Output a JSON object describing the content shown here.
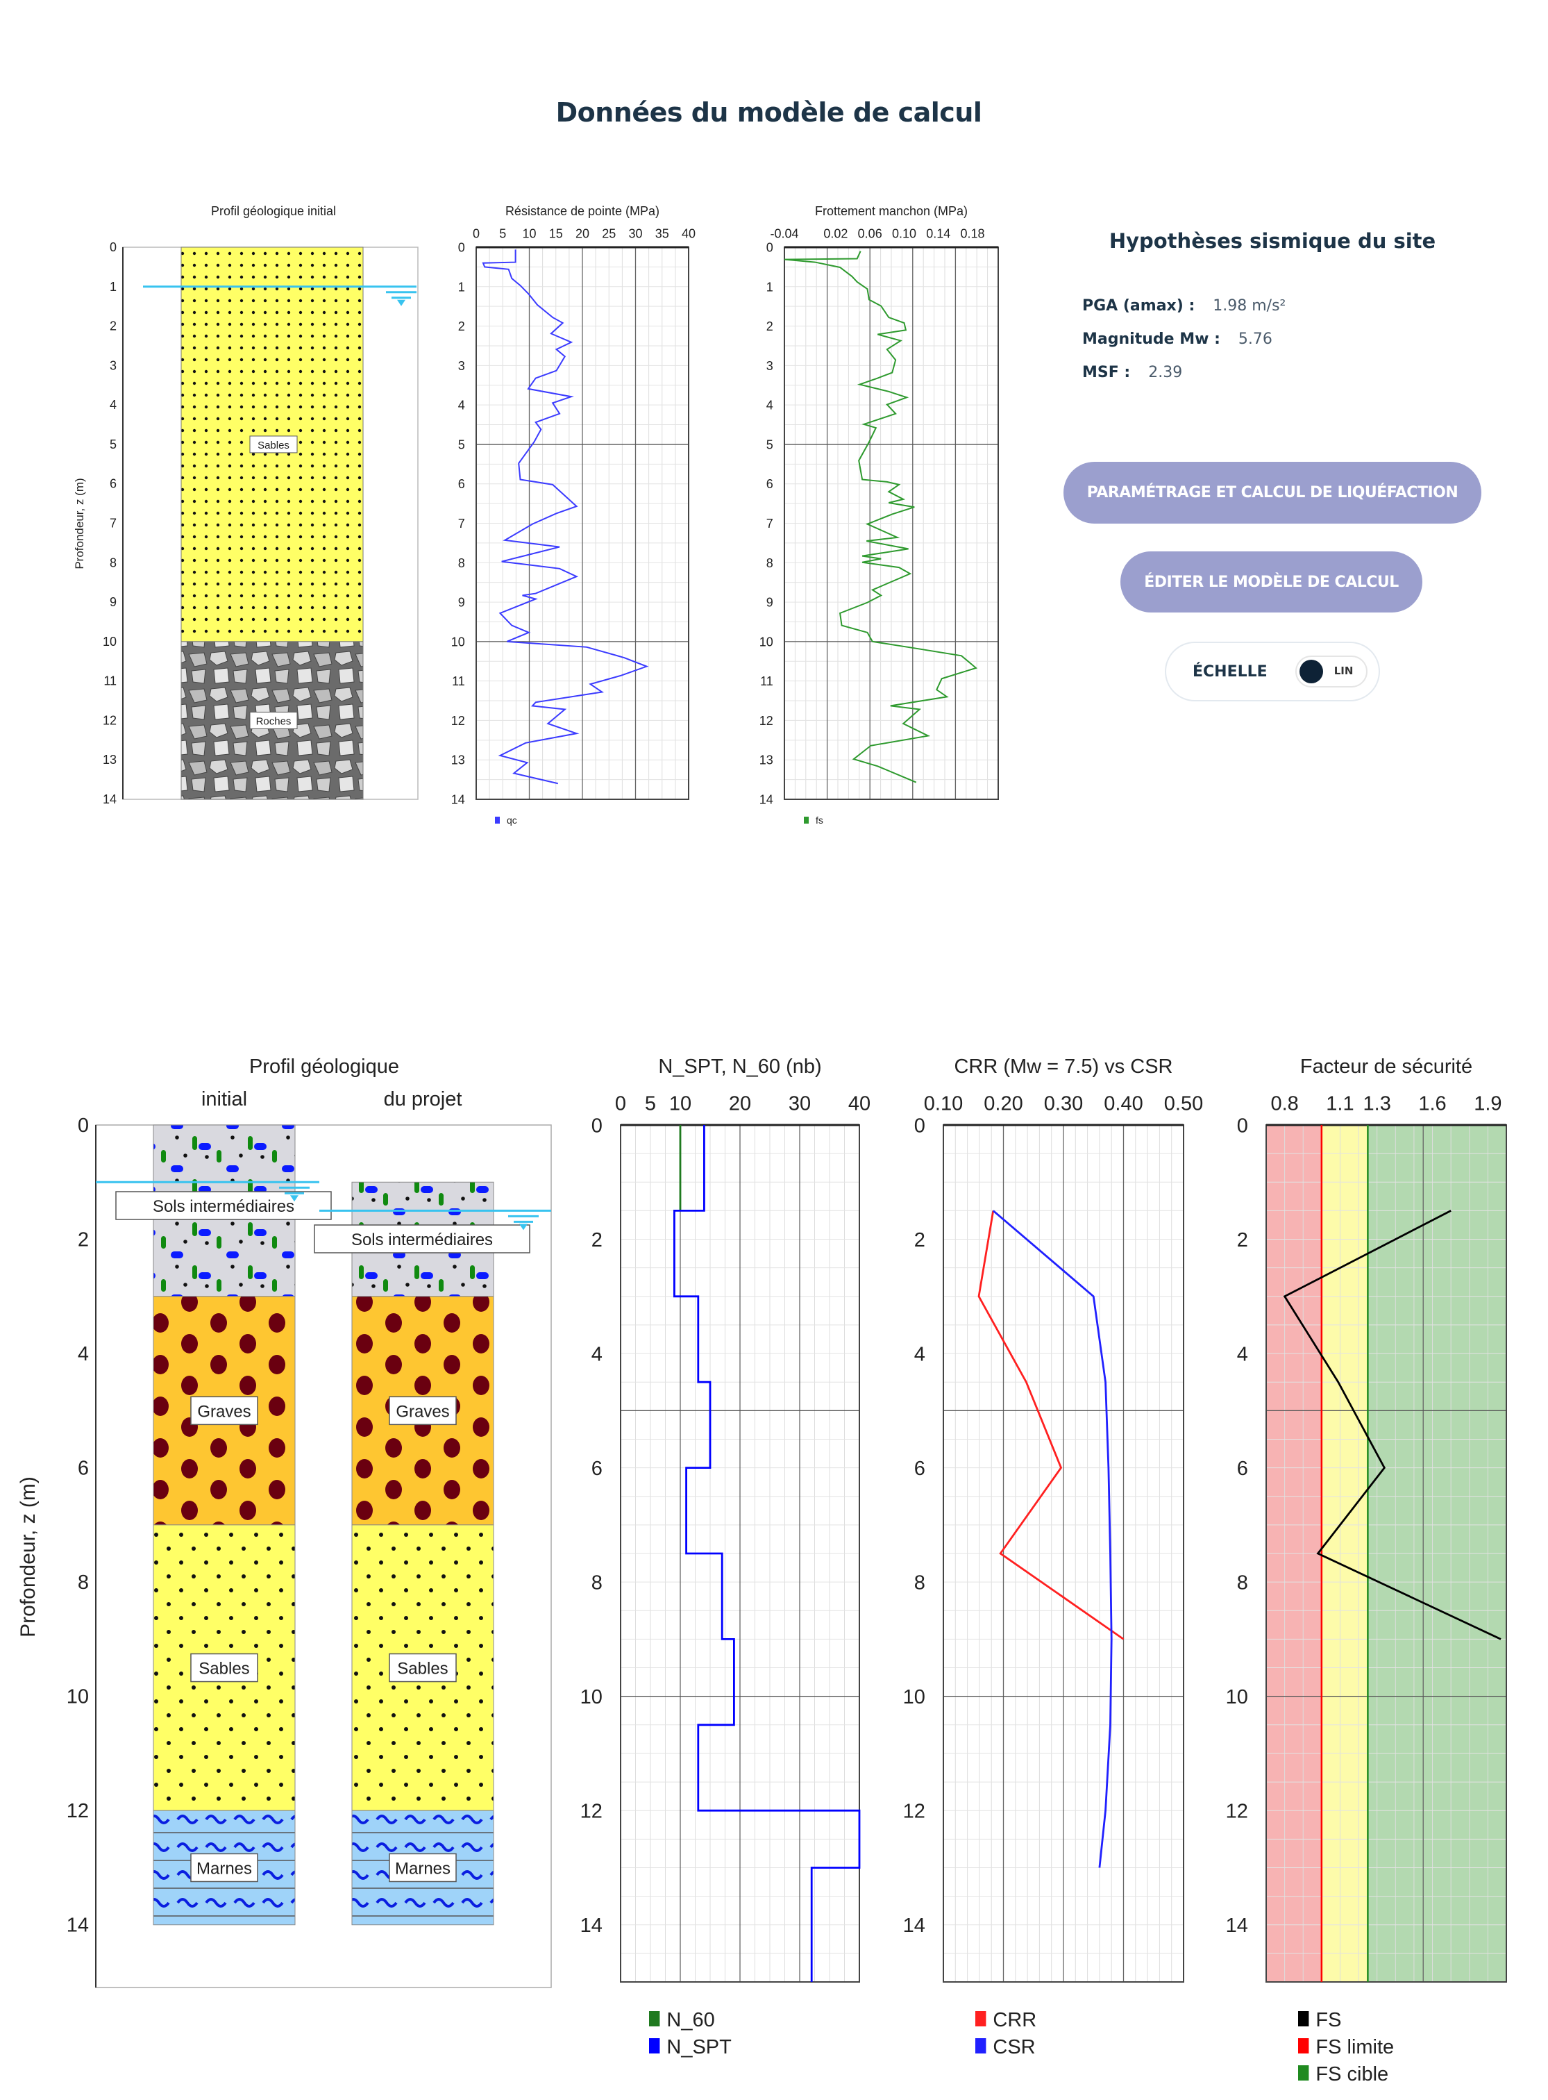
{
  "page": {
    "title": "Données du modèle de calcul"
  },
  "seismic": {
    "title": "Hypothèses sismique du site",
    "pga_label": "PGA (amax) :",
    "pga_value": "1.98 m/s²",
    "mw_label": "Magnitude Mw :",
    "mw_value": "5.76",
    "msf_label": "MSF :",
    "msf_value": "2.39"
  },
  "buttons": {
    "liquefaction": "PARAMÉTRAGE ET CALCUL DE LIQUÉFACTION",
    "edit_model": "ÉDITER LE MODÈLE DE CALCUL"
  },
  "scale_toggle": {
    "label": "ÉCHELLE",
    "value": "LIN"
  },
  "colors": {
    "accent_button": "#9b9fce",
    "heading": "#1d3447",
    "water": "#38c3ef"
  },
  "chart_data": [
    {
      "id": "top_geology",
      "type": "column-profile",
      "title": "Profil géologique initial",
      "ylabel": "Profondeur, z (m)",
      "ylim": [
        0,
        14
      ],
      "yticks": [
        0,
        1,
        2,
        3,
        4,
        5,
        6,
        7,
        8,
        9,
        10,
        11,
        12,
        13,
        14
      ],
      "water_table_depth": 1.0,
      "layers": [
        {
          "name": "Sables",
          "top": 0,
          "bottom": 10,
          "pattern": "sand"
        },
        {
          "name": "Roches",
          "top": 10,
          "bottom": 14,
          "pattern": "rock"
        }
      ]
    },
    {
      "id": "qc",
      "type": "line",
      "title": "Résistance de pointe (MPa)",
      "xlim": [
        0,
        40
      ],
      "ylim": [
        0,
        14
      ],
      "xticks": [
        0,
        5,
        10,
        15,
        20,
        25,
        30,
        35,
        40
      ],
      "yticks": [
        0,
        1,
        2,
        3,
        4,
        5,
        6,
        7,
        8,
        9,
        10,
        11,
        12,
        13,
        14
      ],
      "grid": true,
      "series": [
        {
          "name": "qc",
          "color": "#3b3bff",
          "points": [
            [
              7.4,
              0.06
            ],
            [
              7.4,
              0.38
            ],
            [
              1.3,
              0.4
            ],
            [
              1.6,
              0.5
            ],
            [
              6.1,
              0.56
            ],
            [
              6.7,
              0.79
            ],
            [
              8.3,
              0.97
            ],
            [
              9.9,
              1.19
            ],
            [
              11.5,
              1.46
            ],
            [
              14.4,
              1.78
            ],
            [
              16.3,
              1.92
            ],
            [
              14.1,
              2.19
            ],
            [
              17.9,
              2.41
            ],
            [
              15.1,
              2.59
            ],
            [
              16.7,
              2.77
            ],
            [
              15.1,
              3.13
            ],
            [
              11.2,
              3.32
            ],
            [
              9.8,
              3.59
            ],
            [
              17.9,
              3.79
            ],
            [
              14.4,
              3.95
            ],
            [
              15.7,
              4.22
            ],
            [
              11.2,
              4.44
            ],
            [
              12.2,
              4.62
            ],
            [
              10.9,
              4.94
            ],
            [
              8,
              5.48
            ],
            [
              8.3,
              5.89
            ],
            [
              14.4,
              6.02
            ],
            [
              18.9,
              6.57
            ],
            [
              15.1,
              6.75
            ],
            [
              10.6,
              7.02
            ],
            [
              5.4,
              7.43
            ],
            [
              15.7,
              7.6
            ],
            [
              4.8,
              7.97
            ],
            [
              15.7,
              8.15
            ],
            [
              18.9,
              8.35
            ],
            [
              11.2,
              8.78
            ],
            [
              8.7,
              8.83
            ],
            [
              11.2,
              8.92
            ],
            [
              4.5,
              9.28
            ],
            [
              6.7,
              9.59
            ],
            [
              9.9,
              9.77
            ],
            [
              5.8,
              10.0
            ],
            [
              20.8,
              10.14
            ],
            [
              27.9,
              10.41
            ],
            [
              32.1,
              10.63
            ],
            [
              27.3,
              10.86
            ],
            [
              21.5,
              11.08
            ],
            [
              23.7,
              11.28
            ],
            [
              11.2,
              11.54
            ],
            [
              10.6,
              11.63
            ],
            [
              16.7,
              11.72
            ],
            [
              13.5,
              12.08
            ],
            [
              18.9,
              12.33
            ],
            [
              9.3,
              12.57
            ],
            [
              4.5,
              12.89
            ],
            [
              9.6,
              13.07
            ],
            [
              7.1,
              13.34
            ],
            [
              15.4,
              13.6
            ]
          ]
        }
      ]
    },
    {
      "id": "fs",
      "type": "line",
      "title": "Frottement manchon (MPa)",
      "xlim": [
        -0.04,
        0.21
      ],
      "ylim": [
        0,
        14
      ],
      "xticks": [
        -0.04,
        0.02,
        0.06,
        0.1,
        0.14,
        0.18
      ],
      "xticklabels": [
        "-0.04",
        "0.02",
        "0.06",
        "0.10",
        "0.14",
        "0.18"
      ],
      "yticks": [
        0,
        1,
        2,
        3,
        4,
        5,
        6,
        7,
        8,
        9,
        10,
        11,
        12,
        13,
        14
      ],
      "grid": true,
      "series": [
        {
          "name": "fs",
          "color": "#2e9a2e",
          "points": [
            [
              0.049,
              0.1
            ],
            [
              0.045,
              0.29
            ],
            [
              -0.04,
              0.31
            ],
            [
              -0.004,
              0.38
            ],
            [
              0.025,
              0.51
            ],
            [
              0.039,
              0.74
            ],
            [
              0.045,
              0.88
            ],
            [
              0.057,
              1.06
            ],
            [
              0.059,
              1.33
            ],
            [
              0.073,
              1.49
            ],
            [
              0.082,
              1.78
            ],
            [
              0.1,
              1.92
            ],
            [
              0.102,
              2.1
            ],
            [
              0.069,
              2.21
            ],
            [
              0.096,
              2.37
            ],
            [
              0.08,
              2.59
            ],
            [
              0.09,
              2.86
            ],
            [
              0.086,
              3.18
            ],
            [
              0.069,
              3.32
            ],
            [
              0.048,
              3.48
            ],
            [
              0.082,
              3.66
            ],
            [
              0.103,
              3.81
            ],
            [
              0.08,
              3.99
            ],
            [
              0.09,
              4.22
            ],
            [
              0.053,
              4.49
            ],
            [
              0.067,
              4.58
            ],
            [
              0.059,
              4.94
            ],
            [
              0.047,
              5.41
            ],
            [
              0.051,
              5.89
            ],
            [
              0.08,
              5.95
            ],
            [
              0.094,
              6.02
            ],
            [
              0.082,
              6.2
            ],
            [
              0.099,
              6.39
            ],
            [
              0.082,
              6.48
            ],
            [
              0.112,
              6.59
            ],
            [
              0.086,
              6.77
            ],
            [
              0.057,
              7.02
            ],
            [
              0.092,
              7.36
            ],
            [
              0.056,
              7.45
            ],
            [
              0.105,
              7.65
            ],
            [
              0.051,
              7.83
            ],
            [
              0.073,
              7.9
            ],
            [
              0.051,
              7.99
            ],
            [
              0.094,
              8.12
            ],
            [
              0.107,
              8.28
            ],
            [
              0.063,
              8.69
            ],
            [
              0.073,
              8.83
            ],
            [
              0.057,
              9.01
            ],
            [
              0.025,
              9.28
            ],
            [
              0.027,
              9.59
            ],
            [
              0.057,
              9.77
            ],
            [
              0.063,
              10.0
            ],
            [
              0.11,
              10.16
            ],
            [
              0.167,
              10.36
            ],
            [
              0.184,
              10.67
            ],
            [
              0.144,
              10.94
            ],
            [
              0.138,
              11.22
            ],
            [
              0.15,
              11.4
            ],
            [
              0.084,
              11.63
            ],
            [
              0.118,
              11.72
            ],
            [
              0.099,
              12.08
            ],
            [
              0.128,
              12.39
            ],
            [
              0.061,
              12.64
            ],
            [
              0.041,
              12.98
            ],
            [
              0.069,
              13.16
            ],
            [
              0.114,
              13.57
            ]
          ]
        }
      ]
    },
    {
      "id": "bottom_geology",
      "type": "column-profile",
      "title": "Profil géologique",
      "column_titles": [
        "initial",
        "du projet"
      ],
      "ylabel": "Profondeur, z (m)",
      "ylim": [
        0,
        15
      ],
      "yticks": [
        0,
        2,
        4,
        6,
        8,
        10,
        12,
        14
      ],
      "columns": [
        {
          "water_table_depth": 1.0,
          "layers": [
            {
              "name": "Sols intermédiaires",
              "top": 0,
              "bottom": 3,
              "pattern": "inter"
            },
            {
              "name": "Graves",
              "top": 3,
              "bottom": 7,
              "pattern": "gravel"
            },
            {
              "name": "Sables",
              "top": 7,
              "bottom": 12,
              "pattern": "sand"
            },
            {
              "name": "Marnes",
              "top": 12,
              "bottom": 14,
              "pattern": "marl"
            }
          ]
        },
        {
          "water_table_depth": 1.5,
          "layers": [
            {
              "name": "Sols intermédiaires",
              "top": 1,
              "bottom": 3,
              "pattern": "inter"
            },
            {
              "name": "Graves",
              "top": 3,
              "bottom": 7,
              "pattern": "gravel"
            },
            {
              "name": "Sables",
              "top": 7,
              "bottom": 12,
              "pattern": "sand"
            },
            {
              "name": "Marnes",
              "top": 12,
              "bottom": 14,
              "pattern": "marl"
            }
          ]
        }
      ]
    },
    {
      "id": "nspt",
      "type": "line",
      "title": "N_SPT, N_60 (nb)",
      "xlim": [
        0,
        40
      ],
      "ylim": [
        0,
        15
      ],
      "xticks": [
        0,
        5,
        10,
        20,
        30,
        40
      ],
      "yticks": [
        0,
        2,
        4,
        6,
        8,
        10,
        12,
        14
      ],
      "grid": true,
      "legend": "bottom",
      "series": [
        {
          "name": "N_60",
          "color": "#1f7a1f",
          "step": true,
          "points": [
            [
              10,
              0
            ],
            [
              10,
              1.5
            ]
          ]
        },
        {
          "name": "N_SPT",
          "color": "#0000ff",
          "step": true,
          "points": [
            [
              14,
              0
            ],
            [
              14,
              1.5
            ],
            [
              9,
              1.5
            ],
            [
              9,
              3
            ],
            [
              13,
              3
            ],
            [
              13,
              4.5
            ],
            [
              15,
              4.5
            ],
            [
              15,
              6
            ],
            [
              11,
              6
            ],
            [
              11,
              7.5
            ],
            [
              17,
              7.5
            ],
            [
              17,
              9
            ],
            [
              19,
              9
            ],
            [
              19,
              10.5
            ],
            [
              13,
              10.5
            ],
            [
              13,
              12
            ],
            [
              40,
              12
            ],
            [
              40,
              13
            ],
            [
              32,
              13
            ],
            [
              32,
              15
            ]
          ]
        }
      ]
    },
    {
      "id": "crr_csr",
      "type": "line",
      "title": "CRR (Mw = 7.5) vs CSR",
      "xlim": [
        0.1,
        0.5
      ],
      "ylim": [
        0,
        15
      ],
      "xticks": [
        0.1,
        0.2,
        0.3,
        0.4,
        0.5
      ],
      "xticklabels": [
        "0.10",
        "0.20",
        "0.30",
        "0.40",
        "0.50"
      ],
      "yticks": [
        0,
        2,
        4,
        6,
        8,
        10,
        12,
        14
      ],
      "grid": true,
      "legend": "bottom",
      "series": [
        {
          "name": "CRR",
          "color": "#ff2020",
          "points": [
            [
              0.183,
              1.5
            ],
            [
              0.159,
              3
            ],
            [
              0.238,
              4.5
            ],
            [
              0.296,
              6
            ],
            [
              0.195,
              7.5
            ],
            [
              0.4,
              9
            ]
          ]
        },
        {
          "name": "CSR",
          "color": "#2020ff",
          "points": [
            [
              0.183,
              1.5
            ],
            [
              0.35,
              3
            ],
            [
              0.37,
              4.5
            ],
            [
              0.375,
              6
            ],
            [
              0.378,
              7.5
            ],
            [
              0.38,
              9
            ],
            [
              0.378,
              10.5
            ],
            [
              0.37,
              12
            ],
            [
              0.36,
              13
            ]
          ]
        }
      ]
    },
    {
      "id": "fs_safety",
      "type": "line",
      "title": "Facteur de sécurité",
      "xlim": [
        0.7,
        2.0
      ],
      "ylim": [
        0,
        15
      ],
      "xticks": [
        0.8,
        1.1,
        1.3,
        1.6,
        1.9
      ],
      "xticklabels": [
        "0.8",
        "1.1",
        "1.3",
        "1.6",
        "1.9"
      ],
      "yticks": [
        0,
        2,
        4,
        6,
        8,
        10,
        12,
        14
      ],
      "grid": true,
      "legend": "bottom",
      "fs_limite": 1.0,
      "fs_cible": 1.25,
      "zones": {
        "below_limit": "#f7b3b3",
        "between": "#fdfbaa",
        "above_target": "#b3d9b0"
      },
      "series": [
        {
          "name": "FS",
          "color": "#000000",
          "points": [
            [
              1.7,
              1.5
            ],
            [
              0.8,
              3
            ],
            [
              1.09,
              4.5
            ],
            [
              1.34,
              6
            ],
            [
              0.98,
              7.5
            ],
            [
              1.97,
              9
            ]
          ]
        },
        {
          "name": "FS limite",
          "color": "#ff0000"
        },
        {
          "name": "FS cible",
          "color": "#1f8a1f"
        }
      ]
    }
  ]
}
